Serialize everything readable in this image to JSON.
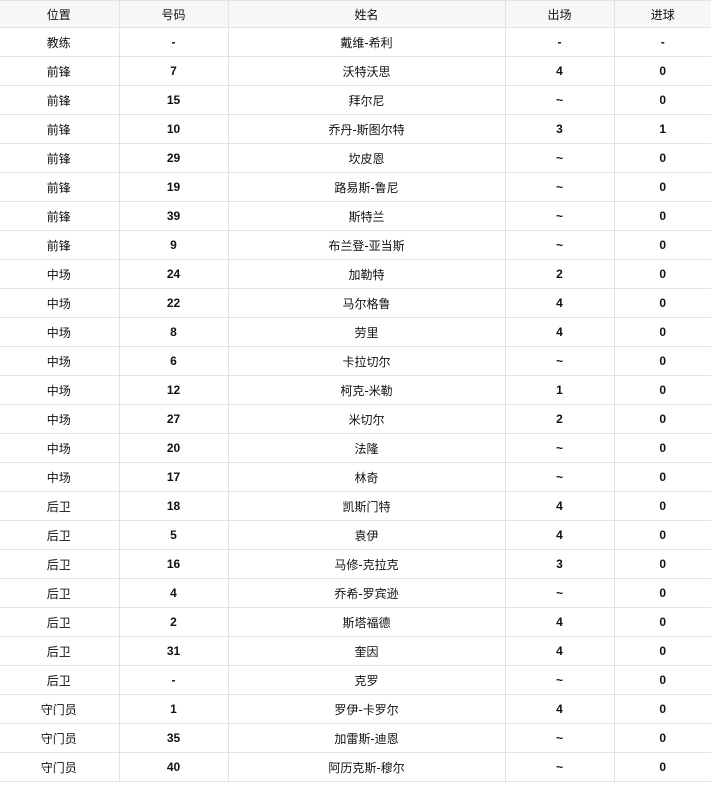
{
  "headers": [
    "位置",
    "号码",
    "姓名",
    "出场",
    "进球"
  ],
  "rows": [
    [
      "教练",
      "-",
      "戴维-希利",
      "-",
      "-"
    ],
    [
      "前锋",
      "7",
      "沃特沃思",
      "4",
      "0"
    ],
    [
      "前锋",
      "15",
      "拜尔尼",
      "~",
      "0"
    ],
    [
      "前锋",
      "10",
      "乔丹-斯图尔特",
      "3",
      "1"
    ],
    [
      "前锋",
      "29",
      "坎皮恩",
      "~",
      "0"
    ],
    [
      "前锋",
      "19",
      "路易斯-鲁尼",
      "~",
      "0"
    ],
    [
      "前锋",
      "39",
      "斯特兰",
      "~",
      "0"
    ],
    [
      "前锋",
      "9",
      "布兰登-亚当斯",
      "~",
      "0"
    ],
    [
      "中场",
      "24",
      "加勒特",
      "2",
      "0"
    ],
    [
      "中场",
      "22",
      "马尔格鲁",
      "4",
      "0"
    ],
    [
      "中场",
      "8",
      "劳里",
      "4",
      "0"
    ],
    [
      "中场",
      "6",
      "卡拉切尔",
      "~",
      "0"
    ],
    [
      "中场",
      "12",
      "柯克-米勒",
      "1",
      "0"
    ],
    [
      "中场",
      "27",
      "米切尔",
      "2",
      "0"
    ],
    [
      "中场",
      "20",
      "法隆",
      "~",
      "0"
    ],
    [
      "中场",
      "17",
      "林奇",
      "~",
      "0"
    ],
    [
      "后卫",
      "18",
      "凯斯门特",
      "4",
      "0"
    ],
    [
      "后卫",
      "5",
      "袁伊",
      "4",
      "0"
    ],
    [
      "后卫",
      "16",
      "马修-克拉克",
      "3",
      "0"
    ],
    [
      "后卫",
      "4",
      "乔希-罗宾逊",
      "~",
      "0"
    ],
    [
      "后卫",
      "2",
      "斯塔福德",
      "4",
      "0"
    ],
    [
      "后卫",
      "31",
      "奎因",
      "4",
      "0"
    ],
    [
      "后卫",
      "-",
      "克罗",
      "~",
      "0"
    ],
    [
      "守门员",
      "1",
      "罗伊-卡罗尔",
      "4",
      "0"
    ],
    [
      "守门员",
      "35",
      "加雷斯-迪恩",
      "~",
      "0"
    ],
    [
      "守门员",
      "40",
      "阿历克斯-穆尔",
      "~",
      "0"
    ]
  ]
}
